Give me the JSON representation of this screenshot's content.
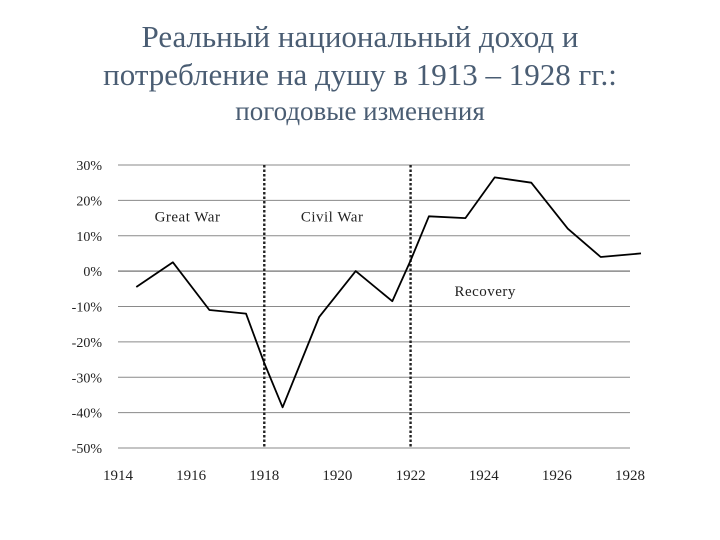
{
  "slide": {
    "title_lines": [
      "Реальный национальный доход и",
      "потребление на душу в 1913 – 1928 гг.:",
      "погодовые изменения"
    ]
  },
  "chart_data": {
    "type": "line",
    "title": "",
    "xlabel": "",
    "ylabel": "",
    "xlim": [
      1914,
      1928
    ],
    "ylim": [
      -50,
      30
    ],
    "grid": true,
    "x_ticks": [
      "1914",
      "1916",
      "1918",
      "1920",
      "1922",
      "1924",
      "1926",
      "1928"
    ],
    "x_tick_values": [
      1914,
      1916,
      1918,
      1920,
      1922,
      1924,
      1926,
      1928
    ],
    "y_ticks": [
      "30%",
      "20%",
      "10%",
      "0%",
      "-10%",
      "-20%",
      "-30%",
      "-40%",
      "-50%"
    ],
    "y_tick_values": [
      30,
      20,
      10,
      0,
      -10,
      -20,
      -30,
      -40,
      -50
    ],
    "series": [
      {
        "name": "",
        "color": "#000000",
        "x": [
          1914.5,
          1915.5,
          1916.5,
          1917.5,
          1918.0,
          1918.5,
          1919.5,
          1920.5,
          1921.5,
          1922.0,
          1922.5,
          1923.5,
          1924.3,
          1925.3,
          1926.3,
          1927.2,
          1928.3
        ],
        "y": [
          -4.5,
          2.5,
          -11,
          -12,
          -26,
          -38.5,
          -13,
          0,
          -8.5,
          3,
          15.5,
          15,
          26.5,
          25,
          12,
          4,
          5
        ]
      }
    ],
    "vlines": [
      1918,
      1922
    ],
    "annotations": [
      {
        "text": "Great War",
        "x": 1915.0,
        "y": 14
      },
      {
        "text": "Civil War",
        "x": 1919.0,
        "y": 14
      },
      {
        "text": "Recovery",
        "x": 1923.2,
        "y": -7
      }
    ]
  }
}
